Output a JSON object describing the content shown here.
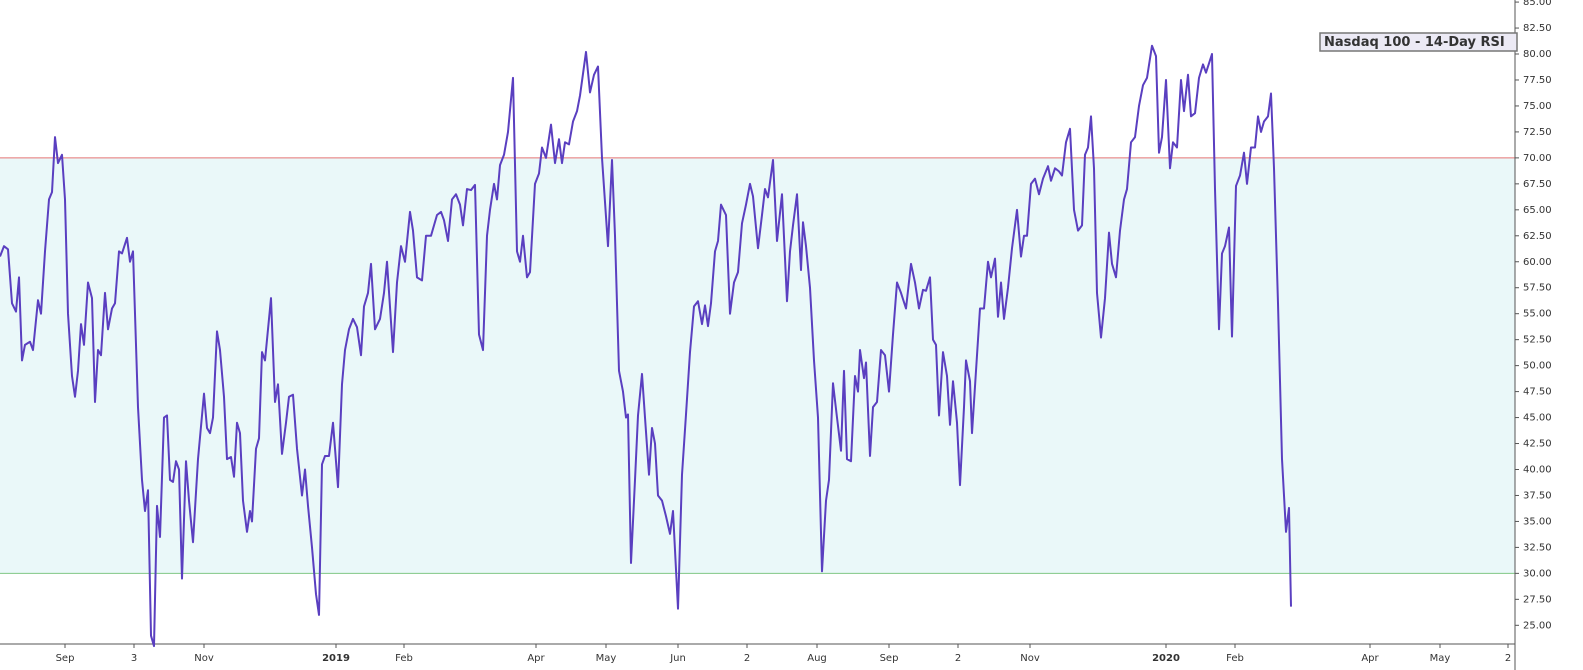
{
  "chart_data": {
    "type": "line",
    "series": [
      {
        "name": "Nasdaq 100 - 14-Day RSI",
        "color": "#5a3fc0",
        "x": [
          0,
          4,
          8,
          12,
          16,
          19,
          22,
          25,
          30,
          33,
          38,
          41,
          45,
          49,
          52,
          55,
          58,
          62,
          65,
          68,
          72,
          75,
          78,
          81,
          84,
          88,
          92,
          95,
          98,
          101,
          105,
          108,
          112,
          115,
          119,
          122,
          127,
          130,
          133,
          138,
          142,
          145,
          148,
          151,
          154,
          157,
          160,
          164,
          167,
          170,
          173,
          176,
          179,
          182,
          186,
          189,
          193,
          198,
          204,
          207,
          210,
          213,
          217,
          220,
          224,
          227,
          231,
          234,
          237,
          240,
          243,
          247,
          250,
          252,
          256,
          259,
          262,
          265,
          271,
          275,
          278,
          282,
          286,
          289,
          293,
          297,
          302,
          305,
          308,
          312,
          316,
          319,
          322,
          325,
          329,
          333,
          338,
          342,
          345,
          349,
          353,
          357,
          361,
          364,
          368,
          371,
          375,
          380,
          384,
          387,
          393,
          397,
          401,
          405,
          410,
          413,
          417,
          422,
          426,
          431,
          434,
          437,
          441,
          444,
          448,
          452,
          456,
          460,
          463,
          467,
          471,
          475,
          479,
          483,
          487,
          490,
          494,
          497,
          500,
          504,
          508,
          513,
          517,
          520,
          523,
          527,
          530,
          535,
          539,
          542,
          546,
          551,
          555,
          559,
          562,
          565,
          569,
          573,
          577,
          580,
          586,
          590,
          594,
          598,
          602,
          608,
          612,
          615,
          619,
          623,
          626,
          628,
          631,
          635,
          638,
          642,
          645,
          649,
          652,
          655,
          658,
          662,
          666,
          670,
          673,
          678,
          682,
          686,
          690,
          694,
          698,
          702,
          705,
          708,
          711,
          715,
          718,
          721,
          726,
          730,
          734,
          738,
          742,
          746,
          750,
          753,
          758,
          762,
          765,
          768,
          773,
          777,
          782,
          787,
          790,
          793,
          797,
          801,
          803,
          806,
          810,
          814,
          818,
          822,
          826,
          829,
          833,
          837,
          841,
          844,
          847,
          851,
          855,
          858,
          860,
          864,
          866,
          870,
          873,
          877,
          881,
          885,
          889,
          893,
          897,
          901,
          906,
          911,
          915,
          919,
          923,
          926,
          930,
          933,
          936,
          939,
          943,
          947,
          950,
          953,
          957,
          960,
          964,
          966,
          970,
          972,
          976,
          980,
          984,
          988,
          991,
          995,
          998,
          1001,
          1004,
          1008,
          1012,
          1017,
          1021,
          1024,
          1027,
          1031,
          1035,
          1039,
          1043,
          1048,
          1051,
          1055,
          1059,
          1062,
          1066,
          1070,
          1074,
          1078,
          1082,
          1085,
          1088,
          1091,
          1094,
          1097,
          1101,
          1105,
          1109,
          1112,
          1116,
          1120,
          1124,
          1127,
          1131,
          1135,
          1139,
          1143,
          1147,
          1152,
          1156,
          1159,
          1162,
          1166,
          1170,
          1173,
          1177,
          1181,
          1184,
          1188,
          1191,
          1195,
          1199,
          1203,
          1206,
          1212,
          1215,
          1219,
          1222,
          1225,
          1229,
          1232,
          1236,
          1240,
          1244,
          1247,
          1251,
          1255,
          1258,
          1261,
          1264,
          1268,
          1271,
          1274,
          1278,
          1282,
          1286,
          1289,
          1291
        ],
        "values": [
          60.5,
          61.5,
          61.2,
          56,
          55.2,
          58.5,
          50.5,
          52,
          52.3,
          51.5,
          56.3,
          55,
          61,
          66,
          66.7,
          72,
          69.5,
          70.3,
          66,
          55,
          49,
          47,
          49.5,
          54,
          52,
          58,
          56.5,
          46.5,
          51.5,
          51,
          57,
          53.5,
          55.5,
          56,
          61,
          60.8,
          62.3,
          60,
          61,
          46,
          39,
          36,
          38,
          24,
          23,
          36.5,
          33.5,
          45,
          45.2,
          39,
          38.8,
          40.8,
          40,
          29.5,
          40.8,
          37,
          33,
          41,
          47.3,
          44,
          43.5,
          45,
          53.3,
          51.5,
          47,
          41,
          41.2,
          39.3,
          44.5,
          43.5,
          37,
          34,
          36,
          35,
          42,
          43,
          51.3,
          50.5,
          56.5,
          46.5,
          48.2,
          41.5,
          44.5,
          47,
          47.2,
          42,
          37.5,
          40,
          36.5,
          32.5,
          28,
          26,
          40.5,
          41.3,
          41.3,
          44.5,
          38.3,
          48.2,
          51.5,
          53.5,
          54.5,
          53.7,
          51,
          55.7,
          57,
          59.8,
          53.5,
          54.5,
          57,
          60,
          51.3,
          58,
          61.5,
          60,
          64.8,
          63,
          58.5,
          58.2,
          62.5,
          62.5,
          63.5,
          64.5,
          64.8,
          64,
          62,
          66,
          66.5,
          65.5,
          63.5,
          67,
          66.9,
          67.4,
          53,
          51.5,
          62.5,
          65,
          67.5,
          66,
          69.3,
          70.3,
          72.5,
          77.7,
          61,
          60,
          62.5,
          58.5,
          59,
          67.5,
          68.5,
          71,
          70,
          73.2,
          69.5,
          71.8,
          69.5,
          71.5,
          71.3,
          73.5,
          74.5,
          76,
          80.2,
          76.3,
          78,
          78.8,
          70,
          61.5,
          69.8,
          62.5,
          49.5,
          47.5,
          45,
          45.3,
          31,
          39,
          45.2,
          49.2,
          45,
          39.5,
          44,
          42.5,
          37.5,
          37,
          35.5,
          33.8,
          36,
          26.6,
          39.5,
          45.3,
          51.3,
          55.7,
          56.2,
          54,
          55.8,
          53.8,
          56,
          61,
          62,
          65.5,
          64.5,
          55,
          58,
          59,
          63.7,
          65.5,
          67.5,
          66.3,
          61.3,
          64.5,
          67,
          66.2,
          69.8,
          62,
          66.5,
          56.2,
          61,
          63.5,
          66.5,
          59.2,
          63.8,
          61.5,
          57.5,
          50.5,
          45,
          30.2,
          37,
          39,
          48.3,
          45,
          41.8,
          49.5,
          41,
          40.8,
          49,
          47.5,
          51.5,
          48.8,
          50.3,
          41.3,
          46,
          46.5,
          51.5,
          51,
          47.5,
          53,
          58,
          57,
          55.5,
          59.8,
          58,
          55.5,
          57.3,
          57.2,
          58.5,
          52.5,
          52,
          45.2,
          51.3,
          49,
          44.3,
          48.5,
          44.5,
          38.5,
          46,
          50.5,
          48.5,
          43.5,
          49.5,
          55.5,
          55.5,
          60,
          58.5,
          60.3,
          54.7,
          58,
          54.5,
          57.5,
          61.3,
          65,
          60.5,
          62.5,
          62.5,
          67.5,
          68,
          66.5,
          68,
          69.2,
          67.8,
          69,
          68.7,
          68.3,
          71.5,
          72.8,
          65,
          63,
          63.5,
          70.3,
          71,
          74,
          69,
          57,
          52.7,
          56.5,
          62.8,
          59.8,
          58.5,
          63,
          66,
          67,
          71.5,
          72,
          75,
          77,
          77.7,
          80.8,
          79.8,
          70.5,
          72,
          77.5,
          69,
          71.5,
          71,
          77.5,
          74.5,
          78,
          74,
          74.3,
          77.7,
          79,
          78.2,
          80,
          67,
          53.5,
          60.8,
          61.5,
          63.3,
          52.8,
          67.3,
          68.3,
          70.5,
          67.5,
          71,
          71,
          74,
          72.5,
          73.5,
          74,
          76.2,
          69,
          56,
          41,
          34,
          36.3,
          26.8
        ]
      }
    ],
    "xlim": [
      0,
      1515
    ],
    "xticks": [
      {
        "value": 65,
        "label": "Sep"
      },
      {
        "value": 134,
        "label": "3"
      },
      {
        "value": 204,
        "label": "Nov"
      },
      {
        "value": 336,
        "label": "2019",
        "bold": true
      },
      {
        "value": 404,
        "label": "Feb"
      },
      {
        "value": 536,
        "label": "Apr"
      },
      {
        "value": 606,
        "label": "May"
      },
      {
        "value": 678,
        "label": "Jun"
      },
      {
        "value": 747,
        "label": "2"
      },
      {
        "value": 817,
        "label": "Aug"
      },
      {
        "value": 889,
        "label": "Sep"
      },
      {
        "value": 958,
        "label": "2"
      },
      {
        "value": 1030,
        "label": "Nov"
      },
      {
        "value": 1166,
        "label": "2020",
        "bold": true
      },
      {
        "value": 1235,
        "label": "Feb"
      },
      {
        "value": 1370,
        "label": "Apr"
      },
      {
        "value": 1440,
        "label": "May"
      },
      {
        "value": 1508,
        "label": "2"
      }
    ],
    "ylim": [
      23.2,
      85.2
    ],
    "yticks": [
      {
        "value": 25,
        "label": "25.00"
      },
      {
        "value": 27.5,
        "label": "27.50"
      },
      {
        "value": 30,
        "label": "30.00"
      },
      {
        "value": 32.5,
        "label": "32.50"
      },
      {
        "value": 35,
        "label": "35.00"
      },
      {
        "value": 37.5,
        "label": "37.50"
      },
      {
        "value": 40,
        "label": "40.00"
      },
      {
        "value": 42.5,
        "label": "42.50"
      },
      {
        "value": 45,
        "label": "45.00"
      },
      {
        "value": 47.5,
        "label": "47.50"
      },
      {
        "value": 50,
        "label": "50.00"
      },
      {
        "value": 52.5,
        "label": "52.50"
      },
      {
        "value": 55,
        "label": "55.00"
      },
      {
        "value": 57.5,
        "label": "57.50"
      },
      {
        "value": 60,
        "label": "60.00"
      },
      {
        "value": 62.5,
        "label": "62.50"
      },
      {
        "value": 65,
        "label": "65.00"
      },
      {
        "value": 67.5,
        "label": "67.50"
      },
      {
        "value": 70,
        "label": "70.00"
      },
      {
        "value": 72.5,
        "label": "72.50"
      },
      {
        "value": 75,
        "label": "75.00"
      },
      {
        "value": 77.5,
        "label": "77.50"
      },
      {
        "value": 80,
        "label": "80.00"
      },
      {
        "value": 82.5,
        "label": "82.50"
      },
      {
        "value": 85,
        "label": "85.00"
      }
    ],
    "bands": {
      "upper": 70,
      "lower": 30,
      "upper_color": "#e57373",
      "lower_color": "#81c784",
      "fill": "#eaf8f9"
    }
  }
}
